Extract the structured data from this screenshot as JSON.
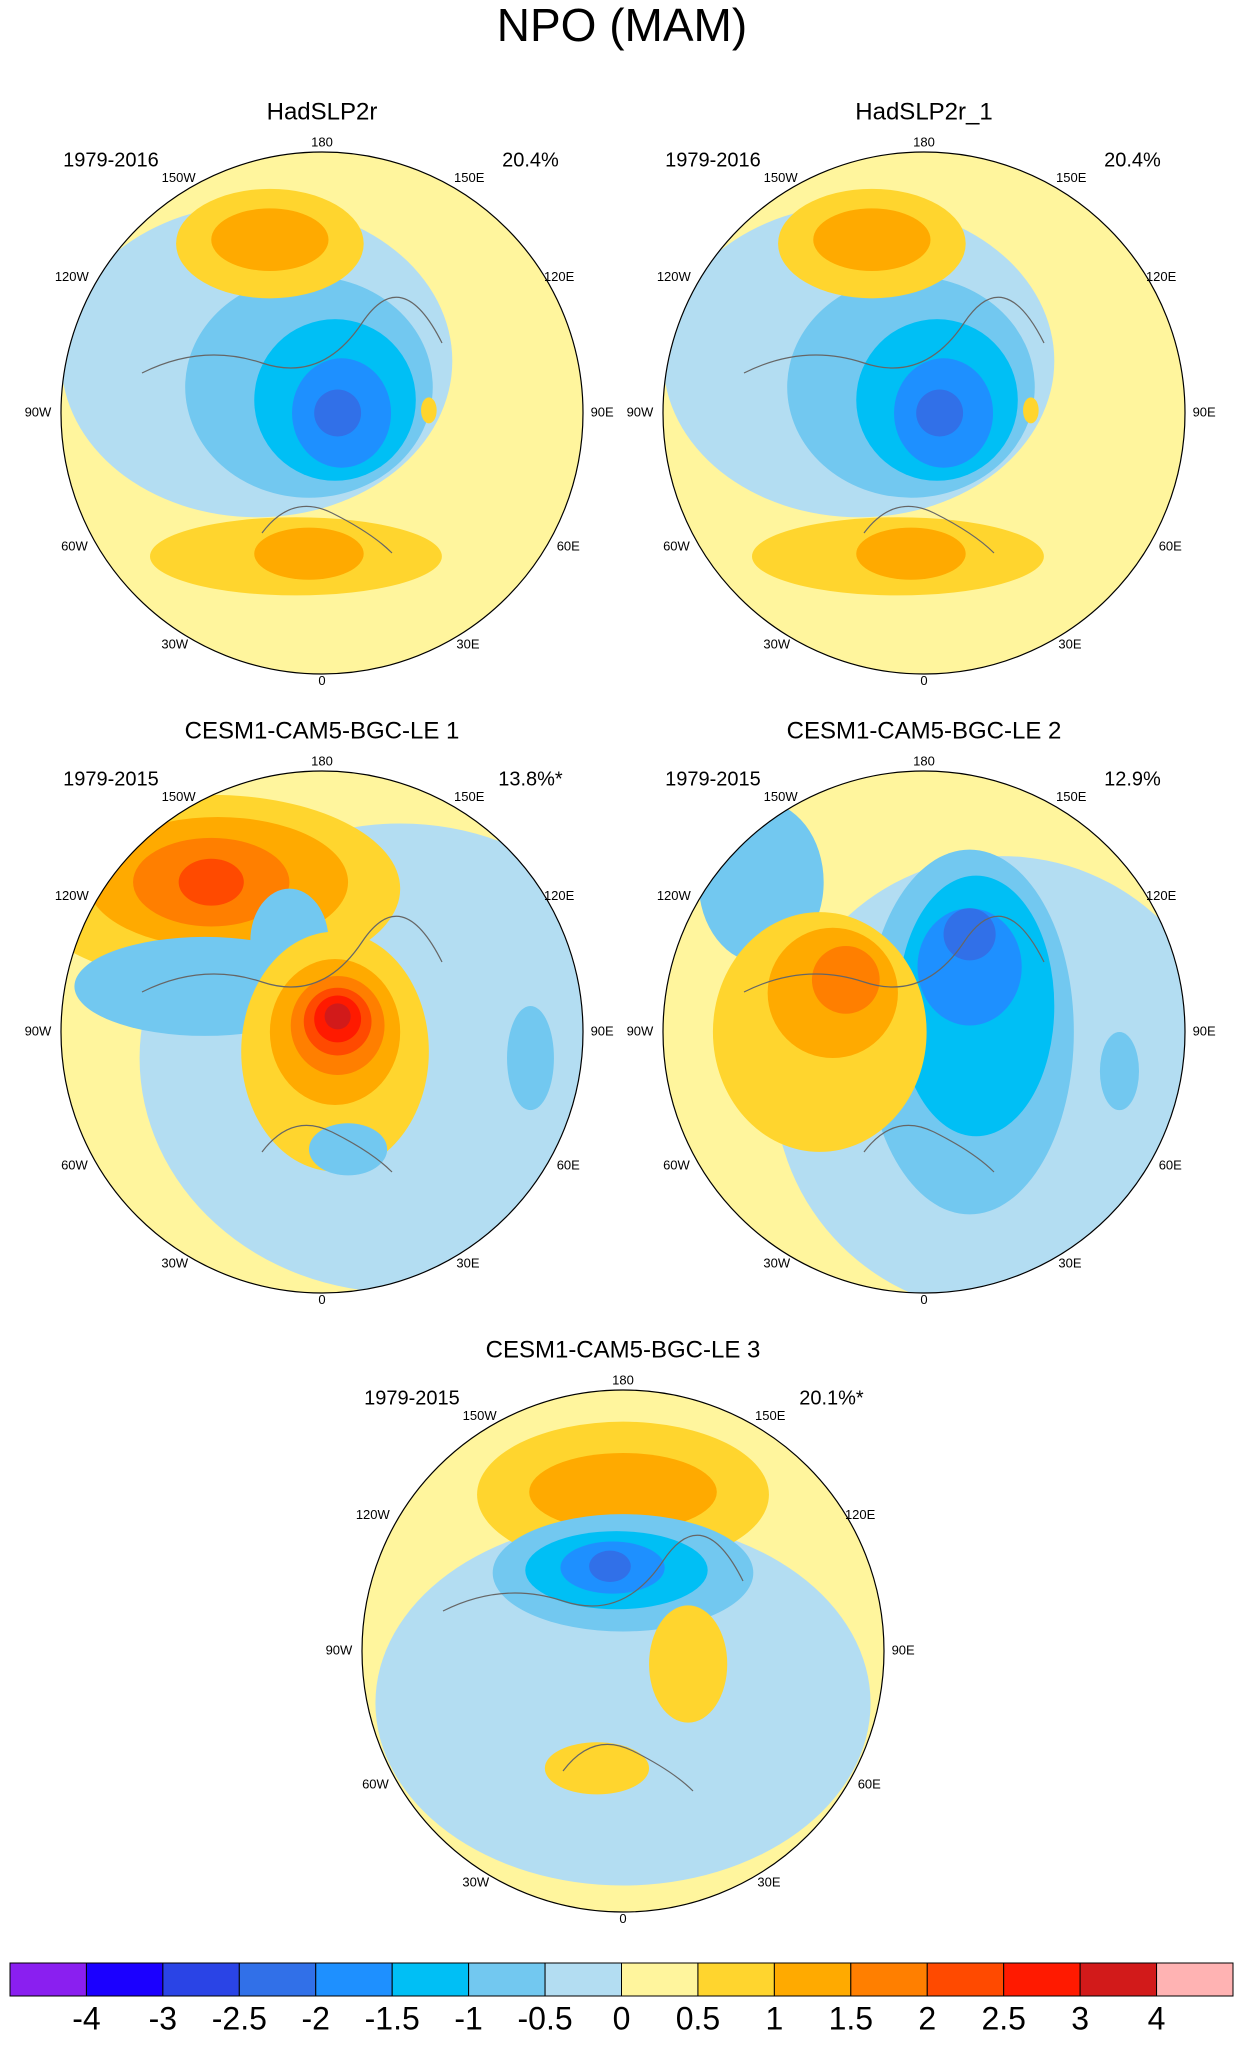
{
  "title": "NPO (MAM)",
  "longitude_labels": [
    "180",
    "150E",
    "120E",
    "90E",
    "60E",
    "30E",
    "0",
    "30W",
    "60W",
    "90W",
    "120W",
    "150W"
  ],
  "panels": [
    {
      "title": "HadSLP2r",
      "period": "1979-2016",
      "percent": "20.4%"
    },
    {
      "title": "HadSLP2r_1",
      "period": "1979-2016",
      "percent": "20.4%"
    },
    {
      "title": "CESM1-CAM5-BGC-LE 1",
      "period": "1979-2015",
      "percent": "13.8%*"
    },
    {
      "title": "CESM1-CAM5-BGC-LE 2",
      "period": "1979-2015",
      "percent": "12.9%"
    },
    {
      "title": "CESM1-CAM5-BGC-LE 3",
      "period": "1979-2015",
      "percent": "20.1%*"
    }
  ],
  "colorbar": {
    "levels": [
      -4,
      -3,
      -2.5,
      -2,
      -1.5,
      -1,
      -0.5,
      0,
      0.5,
      1,
      1.5,
      2,
      2.5,
      3,
      4
    ],
    "colors": [
      "#8a1ff0",
      "#1b00ff",
      "#2a44e6",
      "#3170e8",
      "#1e90ff",
      "#00bff5",
      "#72c8f0",
      "#b3ddf2",
      "#fff59d",
      "#ffd52e",
      "#ffaa00",
      "#ff7f00",
      "#ff4a00",
      "#ff1a00",
      "#d21a1a",
      "#ffb3b3"
    ]
  }
}
